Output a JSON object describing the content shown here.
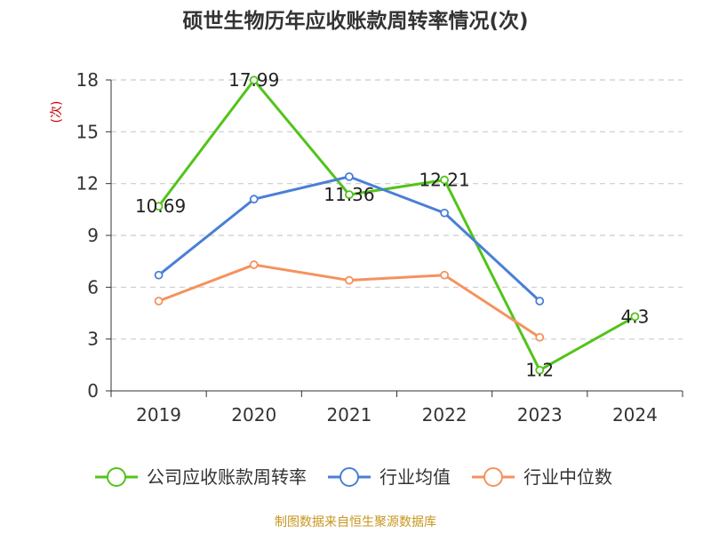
{
  "chart_data": {
    "type": "line",
    "title": "硕世生物历年应收账款周转率情况(次)",
    "ylabel": "(次)",
    "xlabel": "",
    "categories": [
      "2019",
      "2020",
      "2021",
      "2022",
      "2023",
      "2024"
    ],
    "ylim": [
      0,
      18
    ],
    "yticks": [
      0,
      3,
      6,
      9,
      12,
      15,
      18
    ],
    "grid": true,
    "legend_position": "bottom",
    "series": [
      {
        "name": "公司应收账款周转率",
        "color": "#52c41a",
        "values": [
          10.69,
          17.99,
          11.36,
          12.21,
          1.2,
          4.3
        ],
        "data_labels": [
          "10.69",
          "17.99",
          "11.36",
          "12.21",
          "1.2",
          "4.3"
        ]
      },
      {
        "name": "行业均值",
        "color": "#4a7fd6",
        "values": [
          6.7,
          11.1,
          12.4,
          10.3,
          5.2,
          null
        ]
      },
      {
        "name": "行业中位数",
        "color": "#f5925e",
        "values": [
          5.2,
          7.3,
          6.4,
          6.7,
          3.1,
          null
        ]
      }
    ]
  },
  "source_note": "制图数据来自恒生聚源数据库"
}
